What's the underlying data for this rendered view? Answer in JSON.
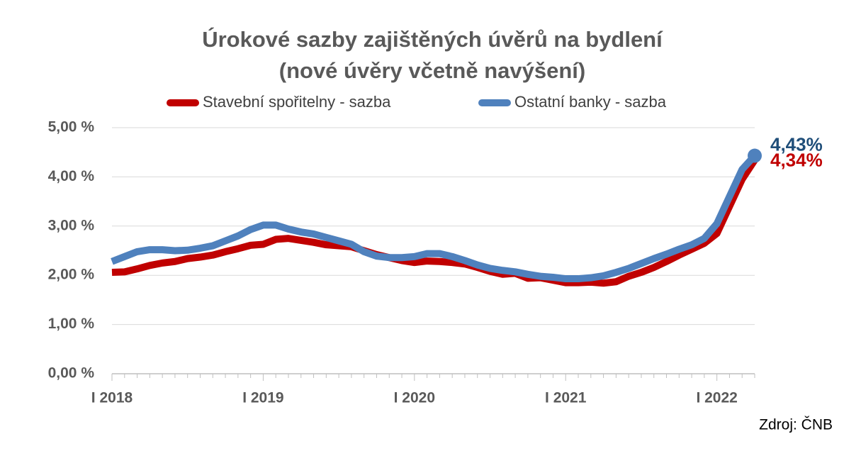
{
  "chart_data": {
    "type": "line",
    "title": "Úrokové sazby zajištěných úvěrů na bydlení",
    "subtitle": "(nové úvěry včetně navýšení)",
    "source": "Zdroj: ČNB",
    "categories": [
      "I 2018",
      null,
      null,
      null,
      null,
      null,
      null,
      null,
      null,
      null,
      null,
      null,
      "I 2019",
      null,
      null,
      null,
      null,
      null,
      null,
      null,
      null,
      null,
      null,
      null,
      "I 2020",
      null,
      null,
      null,
      null,
      null,
      null,
      null,
      null,
      null,
      null,
      null,
      "I 2021",
      null,
      null,
      null,
      null,
      null,
      null,
      null,
      null,
      null,
      null,
      null,
      "I 2022",
      null,
      null,
      null
    ],
    "series": [
      {
        "name": "Stavební spořitelny - sazba",
        "color": "#c00000",
        "values": [
          2.06,
          2.07,
          2.13,
          2.2,
          2.25,
          2.28,
          2.34,
          2.37,
          2.41,
          2.48,
          2.54,
          2.61,
          2.63,
          2.73,
          2.75,
          2.71,
          2.67,
          2.62,
          2.6,
          2.58,
          2.5,
          2.42,
          2.36,
          2.3,
          2.26,
          2.29,
          2.28,
          2.26,
          2.23,
          2.16,
          2.08,
          2.02,
          2.04,
          1.94,
          1.95,
          1.9,
          1.85,
          1.85,
          1.86,
          1.84,
          1.87,
          1.98,
          2.06,
          2.16,
          2.28,
          2.41,
          2.53,
          2.65,
          2.85,
          3.4,
          3.95,
          4.34
        ],
        "value_labels": [
          null,
          null,
          null,
          null,
          null,
          null,
          null,
          null,
          null,
          null,
          null,
          null,
          null,
          null,
          null,
          null,
          null,
          null,
          null,
          null,
          null,
          null,
          null,
          null,
          null,
          null,
          null,
          null,
          null,
          null,
          null,
          null,
          null,
          null,
          null,
          null,
          null,
          null,
          null,
          null,
          null,
          null,
          null,
          null,
          null,
          null,
          null,
          null,
          null,
          null,
          null,
          "4,34%"
        ]
      },
      {
        "name": "Ostatní banky - sazba",
        "color": "#4f81bd",
        "values": [
          2.28,
          2.38,
          2.48,
          2.52,
          2.52,
          2.5,
          2.51,
          2.55,
          2.6,
          2.7,
          2.8,
          2.93,
          3.02,
          3.02,
          2.94,
          2.88,
          2.84,
          2.77,
          2.7,
          2.63,
          2.48,
          2.39,
          2.36,
          2.36,
          2.38,
          2.44,
          2.44,
          2.38,
          2.3,
          2.21,
          2.14,
          2.1,
          2.07,
          2.02,
          1.98,
          1.96,
          1.93,
          1.93,
          1.95,
          1.99,
          2.06,
          2.14,
          2.24,
          2.34,
          2.43,
          2.53,
          2.62,
          2.75,
          3.05,
          3.6,
          4.15,
          4.43
        ],
        "value_labels": [
          null,
          null,
          null,
          null,
          null,
          null,
          null,
          null,
          null,
          null,
          null,
          null,
          null,
          null,
          null,
          null,
          null,
          null,
          null,
          null,
          null,
          null,
          null,
          null,
          null,
          null,
          null,
          null,
          null,
          null,
          null,
          null,
          null,
          null,
          null,
          null,
          null,
          null,
          null,
          null,
          null,
          null,
          null,
          null,
          null,
          null,
          null,
          null,
          null,
          null,
          null,
          "4,43%"
        ],
        "label_color": "#1f4e79"
      }
    ],
    "ylim": [
      0,
      5
    ],
    "yticks": [
      {
        "value": 0,
        "label": "0,00 %"
      },
      {
        "value": 1,
        "label": "1,00 %"
      },
      {
        "value": 2,
        "label": "2,00 %"
      },
      {
        "value": 3,
        "label": "3,00 %"
      },
      {
        "value": 4,
        "label": "4,00 %"
      },
      {
        "value": 5,
        "label": "5,00 %"
      }
    ],
    "grid": true,
    "legend": "top"
  }
}
